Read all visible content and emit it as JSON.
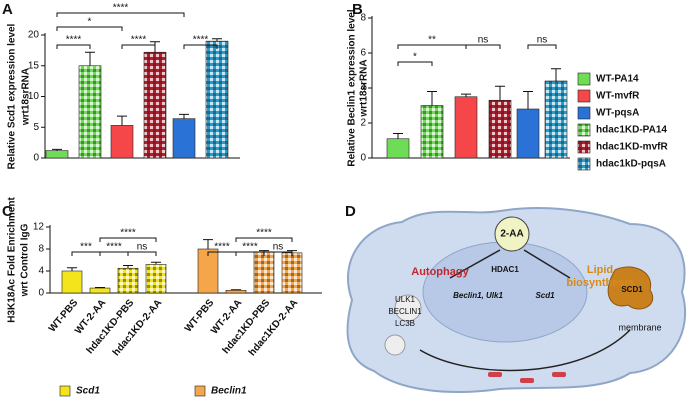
{
  "panels": [
    "A",
    "B",
    "C",
    "D"
  ],
  "legend": [
    {
      "name": "WT-PA14",
      "color": "#6fdc55",
      "pattern": false
    },
    {
      "name": "WT-mvfR",
      "color": "#f5474a",
      "pattern": false
    },
    {
      "name": "WT-pqsA",
      "color": "#2a72d6",
      "pattern": false
    },
    {
      "name": "hdac1KD-PA14",
      "color": "#6fdc55",
      "pattern": true
    },
    {
      "name": "hdac1KD-mvfR",
      "color": "#b01e2e",
      "pattern": true
    },
    {
      "name": "hdac1kD-pqsA",
      "color": "#2a9ccc",
      "pattern": true
    }
  ],
  "chart_data": [
    {
      "type": "bar",
      "ylabel": [
        "Relative Scd1 expression level",
        "wrt18srRNA"
      ],
      "values": [
        1.2,
        15,
        5.3,
        17.2,
        6.4,
        19
      ],
      "errors": [
        0.2,
        2.2,
        1.5,
        1.7,
        0.7,
        0.4
      ],
      "colors": [
        "#6fdc55",
        "#6fdc55",
        "#f5474a",
        "#b01e2e",
        "#2a72d6",
        "#2a9ccc"
      ],
      "patterns": [
        false,
        true,
        false,
        true,
        false,
        true
      ],
      "ylim": [
        0,
        20
      ],
      "yticks": [
        0,
        5,
        10,
        15,
        20
      ],
      "annotations": [
        "****",
        "*",
        "****",
        "****",
        "****"
      ]
    },
    {
      "type": "bar",
      "ylabel": [
        "Relative Beclin1 expression level",
        "wrt18srRNA"
      ],
      "values": [
        1.1,
        3.0,
        3.5,
        3.3,
        2.8,
        4.4
      ],
      "errors": [
        0.3,
        0.8,
        0.15,
        0.8,
        1.0,
        0.7
      ],
      "colors": [
        "#6fdc55",
        "#6fdc55",
        "#f5474a",
        "#b01e2e",
        "#2a72d6",
        "#2a9ccc"
      ],
      "patterns": [
        false,
        true,
        false,
        true,
        false,
        true
      ],
      "ylim": [
        0,
        8
      ],
      "yticks": [
        0,
        2,
        4,
        6,
        8
      ],
      "annotations": [
        "*",
        "**",
        "ns",
        "ns"
      ]
    },
    {
      "type": "bar",
      "ylabel": [
        "H3K18Ac Fold Enrichment",
        "wrt Control IgG"
      ],
      "categories": [
        "WT-PBS",
        "WT-2-AA",
        "hdac1KD-PBS",
        "hdac1KD-2-AA",
        "WT-PBS",
        "WT-2-AA",
        "hdac1KD-PBS",
        "hdac1KD-2-AA"
      ],
      "values": [
        4.0,
        0.9,
        4.5,
        5.2,
        8.0,
        0.5,
        7.5,
        7.3
      ],
      "errors": [
        0.6,
        0.1,
        0.5,
        0.4,
        1.7,
        0.1,
        0.2,
        0.4
      ],
      "colors": [
        "#f4e41c",
        "#f4e41c",
        "#f4e41c",
        "#f4e41c",
        "#f5a54a",
        "#f5a54a",
        "#f5a54a",
        "#f5a54a"
      ],
      "patterns": [
        false,
        false,
        true,
        true,
        false,
        false,
        true,
        true
      ],
      "ylim": [
        0,
        12
      ],
      "yticks": [
        0,
        4,
        8,
        12
      ],
      "legend": [
        {
          "name": "Scd1",
          "color": "#f4e41c"
        },
        {
          "name": "Beclin1",
          "color": "#f5a54a"
        }
      ],
      "annotations": [
        "***",
        "****",
        "ns",
        "****",
        "****",
        "****",
        "ns",
        "****"
      ]
    }
  ],
  "diagram": {
    "signal": "2-AA",
    "autophagy": "Autophagy",
    "lipid": [
      "Lipid",
      "biosynthesis"
    ],
    "proteins": [
      "ULK1",
      "BECLIN1",
      "LC3B"
    ],
    "hdac": "HDAC1",
    "genes": [
      "Beclin1, Ulk1",
      "Scd1"
    ],
    "scd": "SCD1",
    "membrane": "membrane"
  }
}
